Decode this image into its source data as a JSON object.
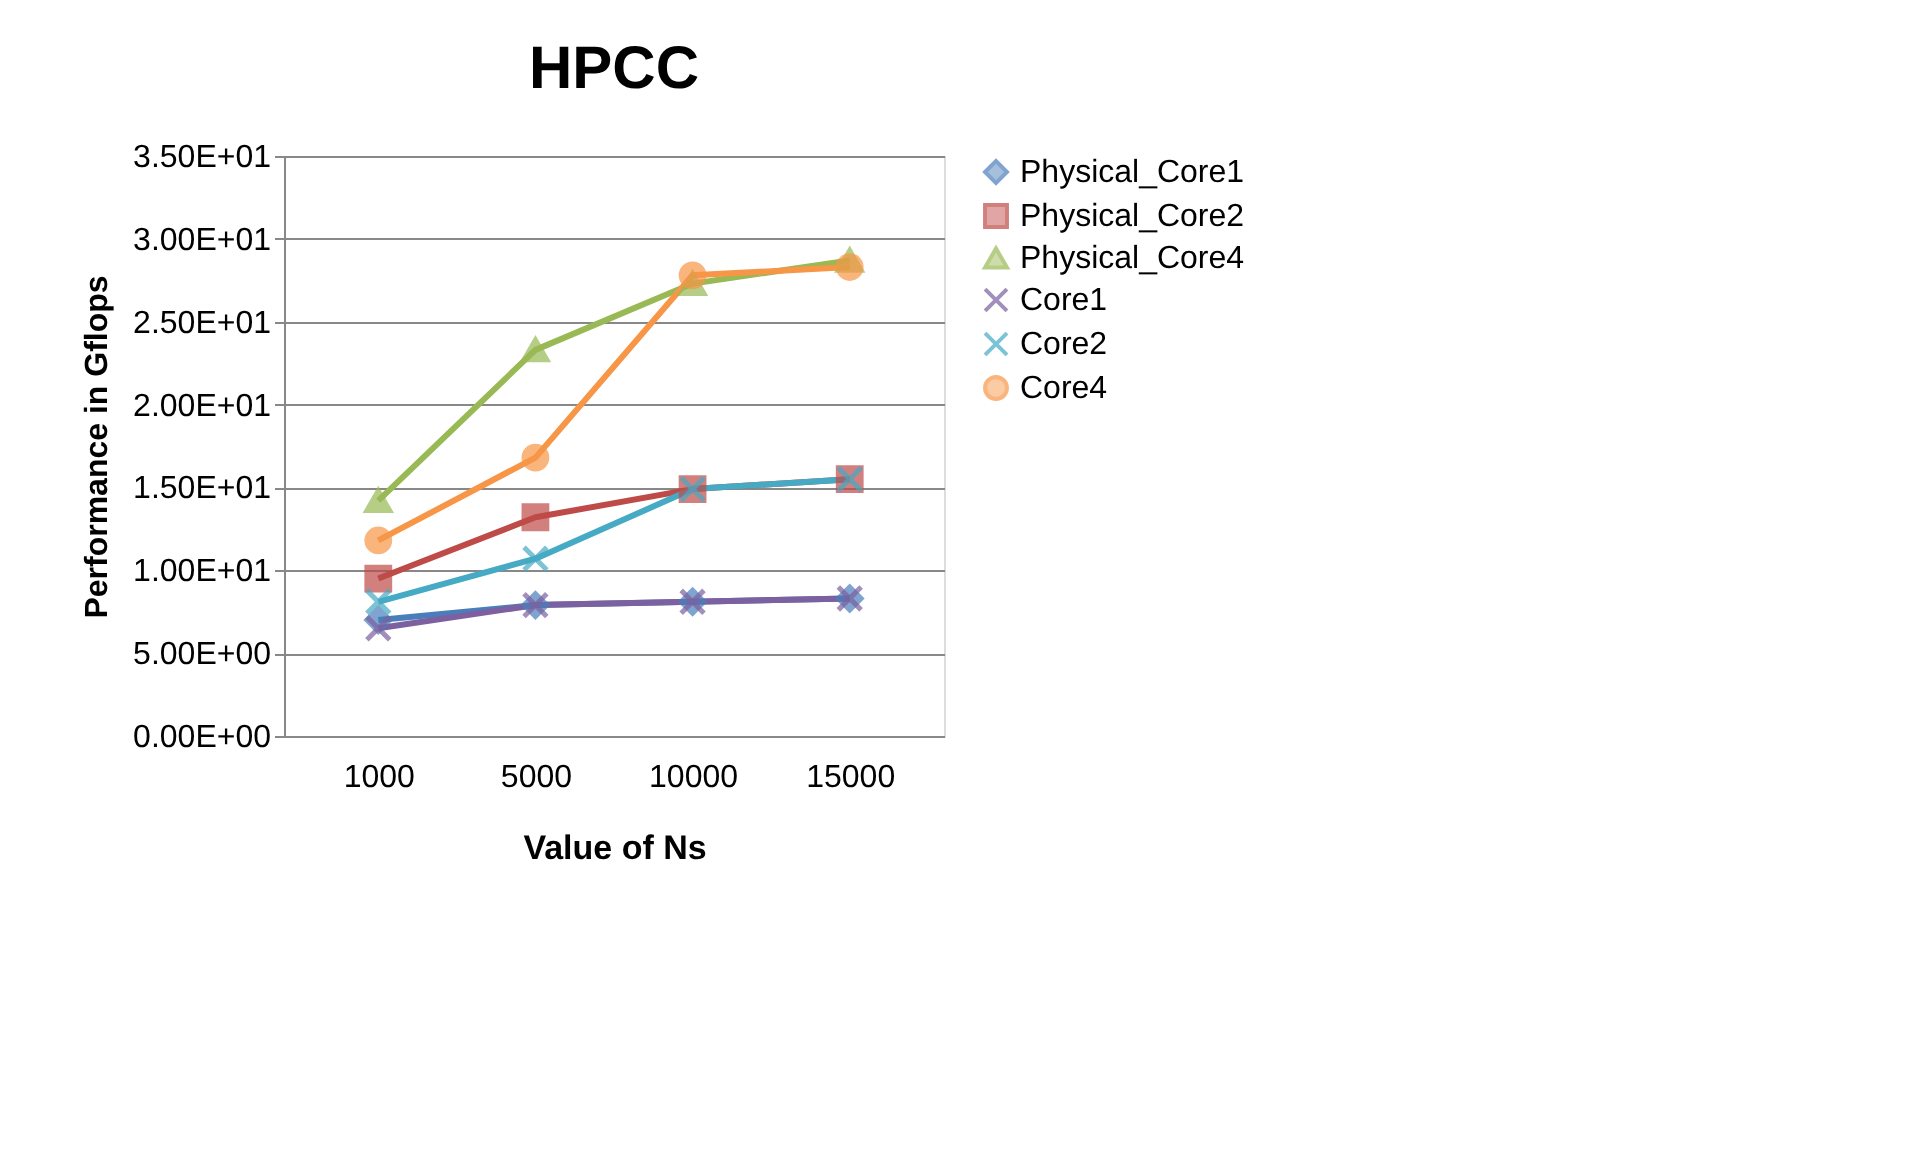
{
  "chart_data": {
    "type": "line",
    "title": "HPCC",
    "xlabel": "Value of Ns",
    "ylabel": "Performance in Gflops",
    "categories": [
      "1000",
      "5000",
      "10000",
      "15000"
    ],
    "ylim": [
      0,
      35
    ],
    "yticks": [
      {
        "value": 0,
        "label": "0.00E+00"
      },
      {
        "value": 5,
        "label": "5.00E+00"
      },
      {
        "value": 10,
        "label": "1.00E+01"
      },
      {
        "value": 15,
        "label": "1.50E+01"
      },
      {
        "value": 20,
        "label": "2.00E+01"
      },
      {
        "value": 25,
        "label": "2.50E+01"
      },
      {
        "value": 30,
        "label": "3.00E+01"
      },
      {
        "value": 35,
        "label": "3.50E+01"
      }
    ],
    "grid": "y",
    "legend": "right",
    "line_style": "solid",
    "series": [
      {
        "name": "Physical_Core1",
        "color": "#4a7ebb",
        "marker": "diamond",
        "values": [
          7.0,
          7.9,
          8.1,
          8.3
        ]
      },
      {
        "name": "Physical_Core2",
        "color": "#be4b48",
        "marker": "square",
        "values": [
          9.5,
          13.2,
          14.9,
          15.5
        ]
      },
      {
        "name": "Physical_Core4",
        "color": "#98b954",
        "marker": "triangle",
        "values": [
          14.2,
          23.3,
          27.3,
          28.7
        ]
      },
      {
        "name": "Core1",
        "color": "#7d60a0",
        "marker": "cross",
        "values": [
          6.5,
          7.9,
          8.1,
          8.3
        ]
      },
      {
        "name": "Core2",
        "color": "#46aac5",
        "marker": "cross",
        "values": [
          8.1,
          10.7,
          14.9,
          15.5
        ]
      },
      {
        "name": "Core4",
        "color": "#f79646",
        "marker": "circle",
        "values": [
          11.8,
          16.8,
          27.8,
          28.3
        ]
      }
    ]
  }
}
